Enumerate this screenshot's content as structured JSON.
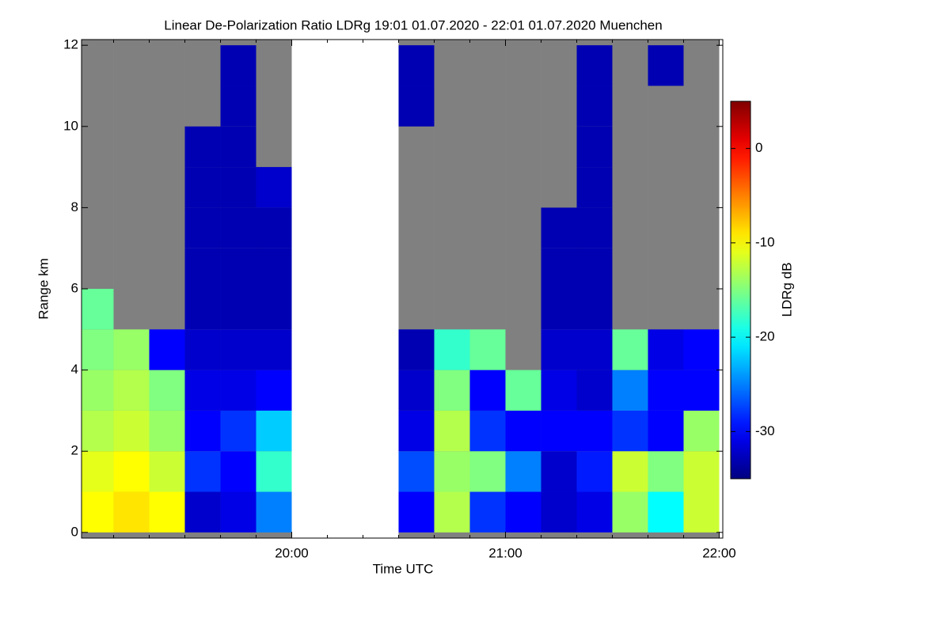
{
  "chart_data": {
    "type": "heatmap",
    "title": "Linear De-Polarization Ratio LDRg   19:01 01.07.2020 - 22:01 01.07.2020 Muenchen",
    "x_label": "Time UTC",
    "y_label": "Range km",
    "colorbar_label": "LDRg dB",
    "colormap": "jet",
    "no_signal_color": "#808080",
    "x": [
      19.0833,
      19.25,
      19.4167,
      19.5833,
      19.75,
      19.9167,
      20.0833,
      20.25,
      20.4167,
      20.5833,
      20.75,
      20.9167,
      21.0833,
      21.25,
      21.4167,
      21.5833,
      21.75,
      21.9167
    ],
    "y": [
      0.5,
      1.5,
      2.5,
      3.5,
      4.5,
      5.5,
      6.5,
      7.5,
      8.5,
      9.5,
      10.5,
      11.5
    ],
    "values": [
      [
        -10,
        -11,
        -13,
        -14,
        -15,
        -16,
        null,
        null,
        null,
        null,
        null,
        null
      ],
      [
        -9,
        -10,
        -12,
        -13,
        -14,
        null,
        null,
        null,
        null,
        null,
        null,
        null
      ],
      [
        -10,
        -12,
        -14,
        -15,
        -30,
        null,
        null,
        null,
        null,
        null,
        null,
        null
      ],
      [
        -32,
        -28,
        -30,
        -31,
        -32,
        -33,
        -33,
        -33,
        -33,
        -33,
        null,
        null
      ],
      [
        -31,
        -30,
        -28,
        -31,
        -32,
        -33,
        -33,
        -33,
        -33,
        -33,
        -33,
        -33
      ],
      [
        -25,
        -18,
        -22,
        -30,
        -32,
        -33,
        -33,
        -33,
        -32,
        null,
        null,
        null
      ],
      [
        null,
        null,
        null,
        null,
        null,
        null,
        null,
        null,
        null,
        null,
        null,
        null
      ],
      [
        null,
        null,
        null,
        null,
        null,
        null,
        null,
        null,
        null,
        null,
        null,
        null
      ],
      [
        null,
        null,
        null,
        null,
        null,
        null,
        null,
        null,
        null,
        null,
        null,
        null
      ],
      [
        -30,
        -27,
        -31,
        -32,
        -33,
        null,
        null,
        null,
        null,
        null,
        -33,
        -33
      ],
      [
        -13,
        -14,
        -13,
        -15,
        -18,
        null,
        null,
        null,
        null,
        null,
        null,
        null
      ],
      [
        -28,
        -15,
        -28,
        -30,
        -16,
        null,
        null,
        null,
        null,
        null,
        null,
        null
      ],
      [
        -30,
        -25,
        -30,
        -16,
        null,
        null,
        null,
        null,
        null,
        null,
        null,
        null
      ],
      [
        -32,
        -32,
        -30,
        -31,
        -32,
        -33,
        -33,
        -33,
        null,
        null,
        null,
        null
      ],
      [
        -31,
        -29,
        -30,
        -32,
        -32,
        -33,
        -33,
        -33,
        -33,
        -33,
        -33,
        -33
      ],
      [
        -14,
        -12,
        -28,
        -25,
        -16,
        null,
        null,
        null,
        null,
        null,
        null,
        null
      ],
      [
        -20,
        -15,
        -30,
        -30,
        -31,
        null,
        null,
        null,
        null,
        null,
        null,
        -33
      ],
      [
        -12,
        -12,
        -14,
        -30,
        -30,
        null,
        null,
        null,
        null,
        null,
        null,
        null
      ]
    ],
    "xlim": [
      19.0167,
      22.0167
    ],
    "xticks": [
      {
        "value": 20,
        "label": "20:00"
      },
      {
        "value": 21,
        "label": "21:00"
      },
      {
        "value": 22,
        "label": "22:00"
      }
    ],
    "ylim": [
      -0.14,
      12.14
    ],
    "yticks": [
      0,
      2,
      4,
      6,
      8,
      10,
      12
    ],
    "clim": [
      -35,
      5
    ],
    "cticks": [
      0,
      -10,
      -20,
      -30
    ]
  }
}
